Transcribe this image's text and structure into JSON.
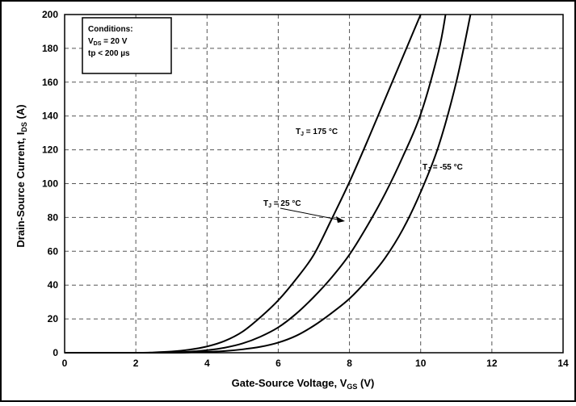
{
  "chart_data": {
    "type": "line",
    "xlabel": {
      "main": "Gate-Source Voltage, V",
      "sub": "GS",
      "unit": " (V)"
    },
    "ylabel": {
      "main": "Drain-Source Current, I",
      "sub": "DS",
      "unit": " (A)"
    },
    "xlim": [
      0,
      14
    ],
    "ylim": [
      0,
      200
    ],
    "xticks": [
      "0",
      "2",
      "4",
      "6",
      "8",
      "10",
      "12",
      "14"
    ],
    "yticks": [
      "0",
      "20",
      "40",
      "60",
      "80",
      "100",
      "120",
      "140",
      "160",
      "180",
      "200"
    ],
    "grid": true,
    "conditions": {
      "title": "Conditions:",
      "line1": {
        "pre": "V",
        "sub": "DS",
        "post": " = 20 V"
      },
      "line2": "tp < 200 µs"
    },
    "series": [
      {
        "name": "T_J = 175 °C",
        "label": {
          "pre": "T",
          "sub": "J",
          "post": " = 175 °C"
        },
        "x": [
          2.0,
          2.5,
          3.0,
          3.5,
          4.0,
          4.5,
          5.0,
          5.5,
          6.0,
          6.5,
          7.0,
          7.5,
          8.0,
          8.5,
          9.0,
          9.5,
          10.0
        ],
        "y": [
          0,
          0.2,
          0.7,
          1.8,
          3.7,
          7.0,
          12.5,
          21.0,
          31.0,
          43.5,
          58.0,
          79.0,
          101.0,
          125.0,
          150.0,
          175.0,
          200.0
        ]
      },
      {
        "name": "T_J = 25 °C",
        "label": {
          "pre": "T",
          "sub": "J",
          "post": " = 25 °C"
        },
        "x": [
          2.5,
          3.0,
          3.5,
          4.0,
          4.5,
          5.0,
          5.5,
          6.0,
          6.5,
          7.0,
          7.5,
          8.0,
          8.5,
          9.0,
          9.5,
          10.0,
          10.5,
          10.7
        ],
        "y": [
          0,
          0.2,
          0.6,
          1.5,
          3.0,
          5.5,
          9.5,
          15.0,
          23.0,
          33.0,
          44.5,
          58.0,
          75.0,
          94.0,
          116.0,
          141.0,
          178.0,
          200.0
        ]
      },
      {
        "name": "T_J = -55 °C",
        "label": {
          "pre": "T",
          "sub": "J",
          "post": " = -55 °C"
        },
        "x": [
          3.0,
          3.5,
          4.0,
          4.5,
          5.0,
          5.5,
          6.0,
          6.5,
          7.0,
          7.5,
          8.0,
          8.5,
          9.0,
          9.5,
          10.0,
          10.5,
          11.0,
          11.4
        ],
        "y": [
          0,
          0.2,
          0.5,
          1.0,
          2.0,
          3.5,
          6.0,
          10.0,
          16.0,
          23.5,
          32.0,
          43.0,
          56.0,
          73.0,
          95.0,
          122.0,
          160.0,
          200.0
        ]
      }
    ]
  }
}
